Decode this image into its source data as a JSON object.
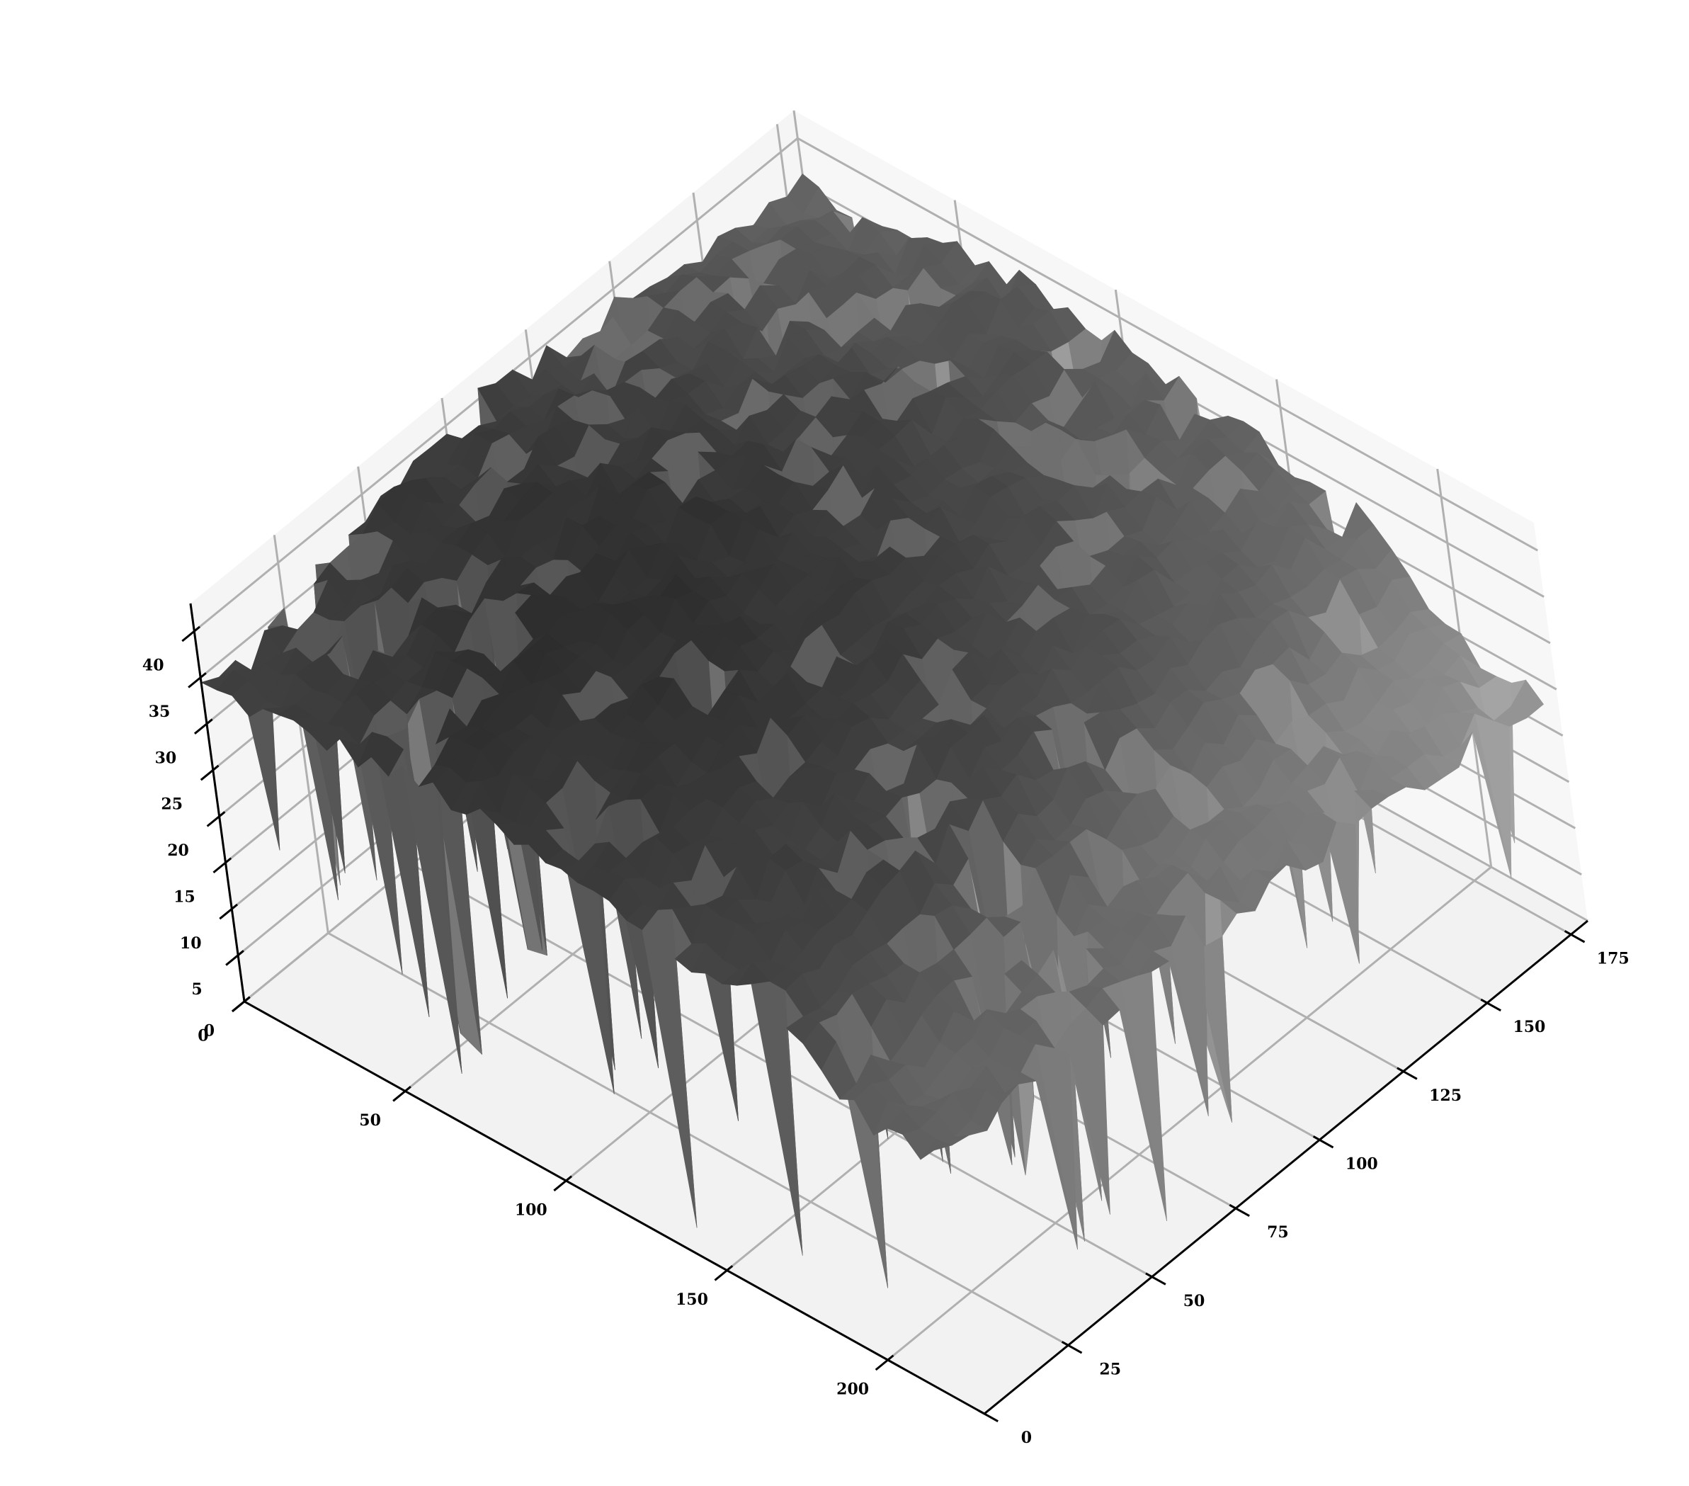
{
  "chart_data": {
    "type": "surface3d",
    "title": "",
    "xlabel": "",
    "ylabel": "",
    "zlabel": "",
    "colormap": "grayscale",
    "grid": true,
    "xlim": [
      0,
      230
    ],
    "ylim": [
      0,
      180
    ],
    "zlim": [
      0,
      43
    ],
    "x_ticks": [
      0,
      50,
      100,
      150,
      200
    ],
    "y_ticks": [
      0,
      25,
      50,
      75,
      100,
      125,
      150,
      175
    ],
    "z_ticks": [
      0,
      5,
      10,
      15,
      20,
      25,
      30,
      35,
      40
    ],
    "x_tick_labels": [
      "0",
      "50",
      "100",
      "150",
      "200"
    ],
    "y_tick_labels": [
      "0",
      "25",
      "50",
      "75",
      "100",
      "125",
      "150",
      "175"
    ],
    "z_tick_labels": [
      "0",
      "5",
      "10",
      "15",
      "20",
      "25",
      "30",
      "35",
      "40"
    ],
    "surface": {
      "description_of_values": "depth/height map, mostly 30-43 on a plateau with many deep drops toward 0; lower-right region (y 140-180) near 20-25",
      "grid_x": [
        0,
        25,
        50,
        75,
        100,
        125,
        150,
        175,
        200,
        225
      ],
      "grid_y": [
        0,
        20,
        40,
        60,
        80,
        100,
        120,
        140,
        160,
        180
      ],
      "z": [
        [
          34,
          35,
          36,
          37,
          36,
          35,
          34,
          34,
          27,
          26
        ],
        [
          36,
          37,
          38,
          39,
          38,
          37,
          36,
          35,
          27,
          26
        ],
        [
          38,
          39,
          40,
          41,
          40,
          39,
          37,
          36,
          28,
          27
        ],
        [
          39,
          40,
          41,
          42,
          41,
          40,
          38,
          36,
          28,
          27
        ],
        [
          40,
          41,
          42,
          42,
          41,
          40,
          38,
          36,
          28,
          27
        ],
        [
          39,
          40,
          41,
          42,
          41,
          40,
          38,
          35,
          27,
          26
        ],
        [
          38,
          39,
          40,
          41,
          40,
          39,
          37,
          35,
          27,
          26
        ],
        [
          37,
          38,
          39,
          40,
          39,
          38,
          36,
          34,
          26,
          25
        ],
        [
          36,
          37,
          38,
          39,
          38,
          37,
          35,
          33,
          25,
          24
        ],
        [
          35,
          36,
          37,
          38,
          37,
          36,
          34,
          32,
          24,
          23
        ]
      ]
    }
  }
}
